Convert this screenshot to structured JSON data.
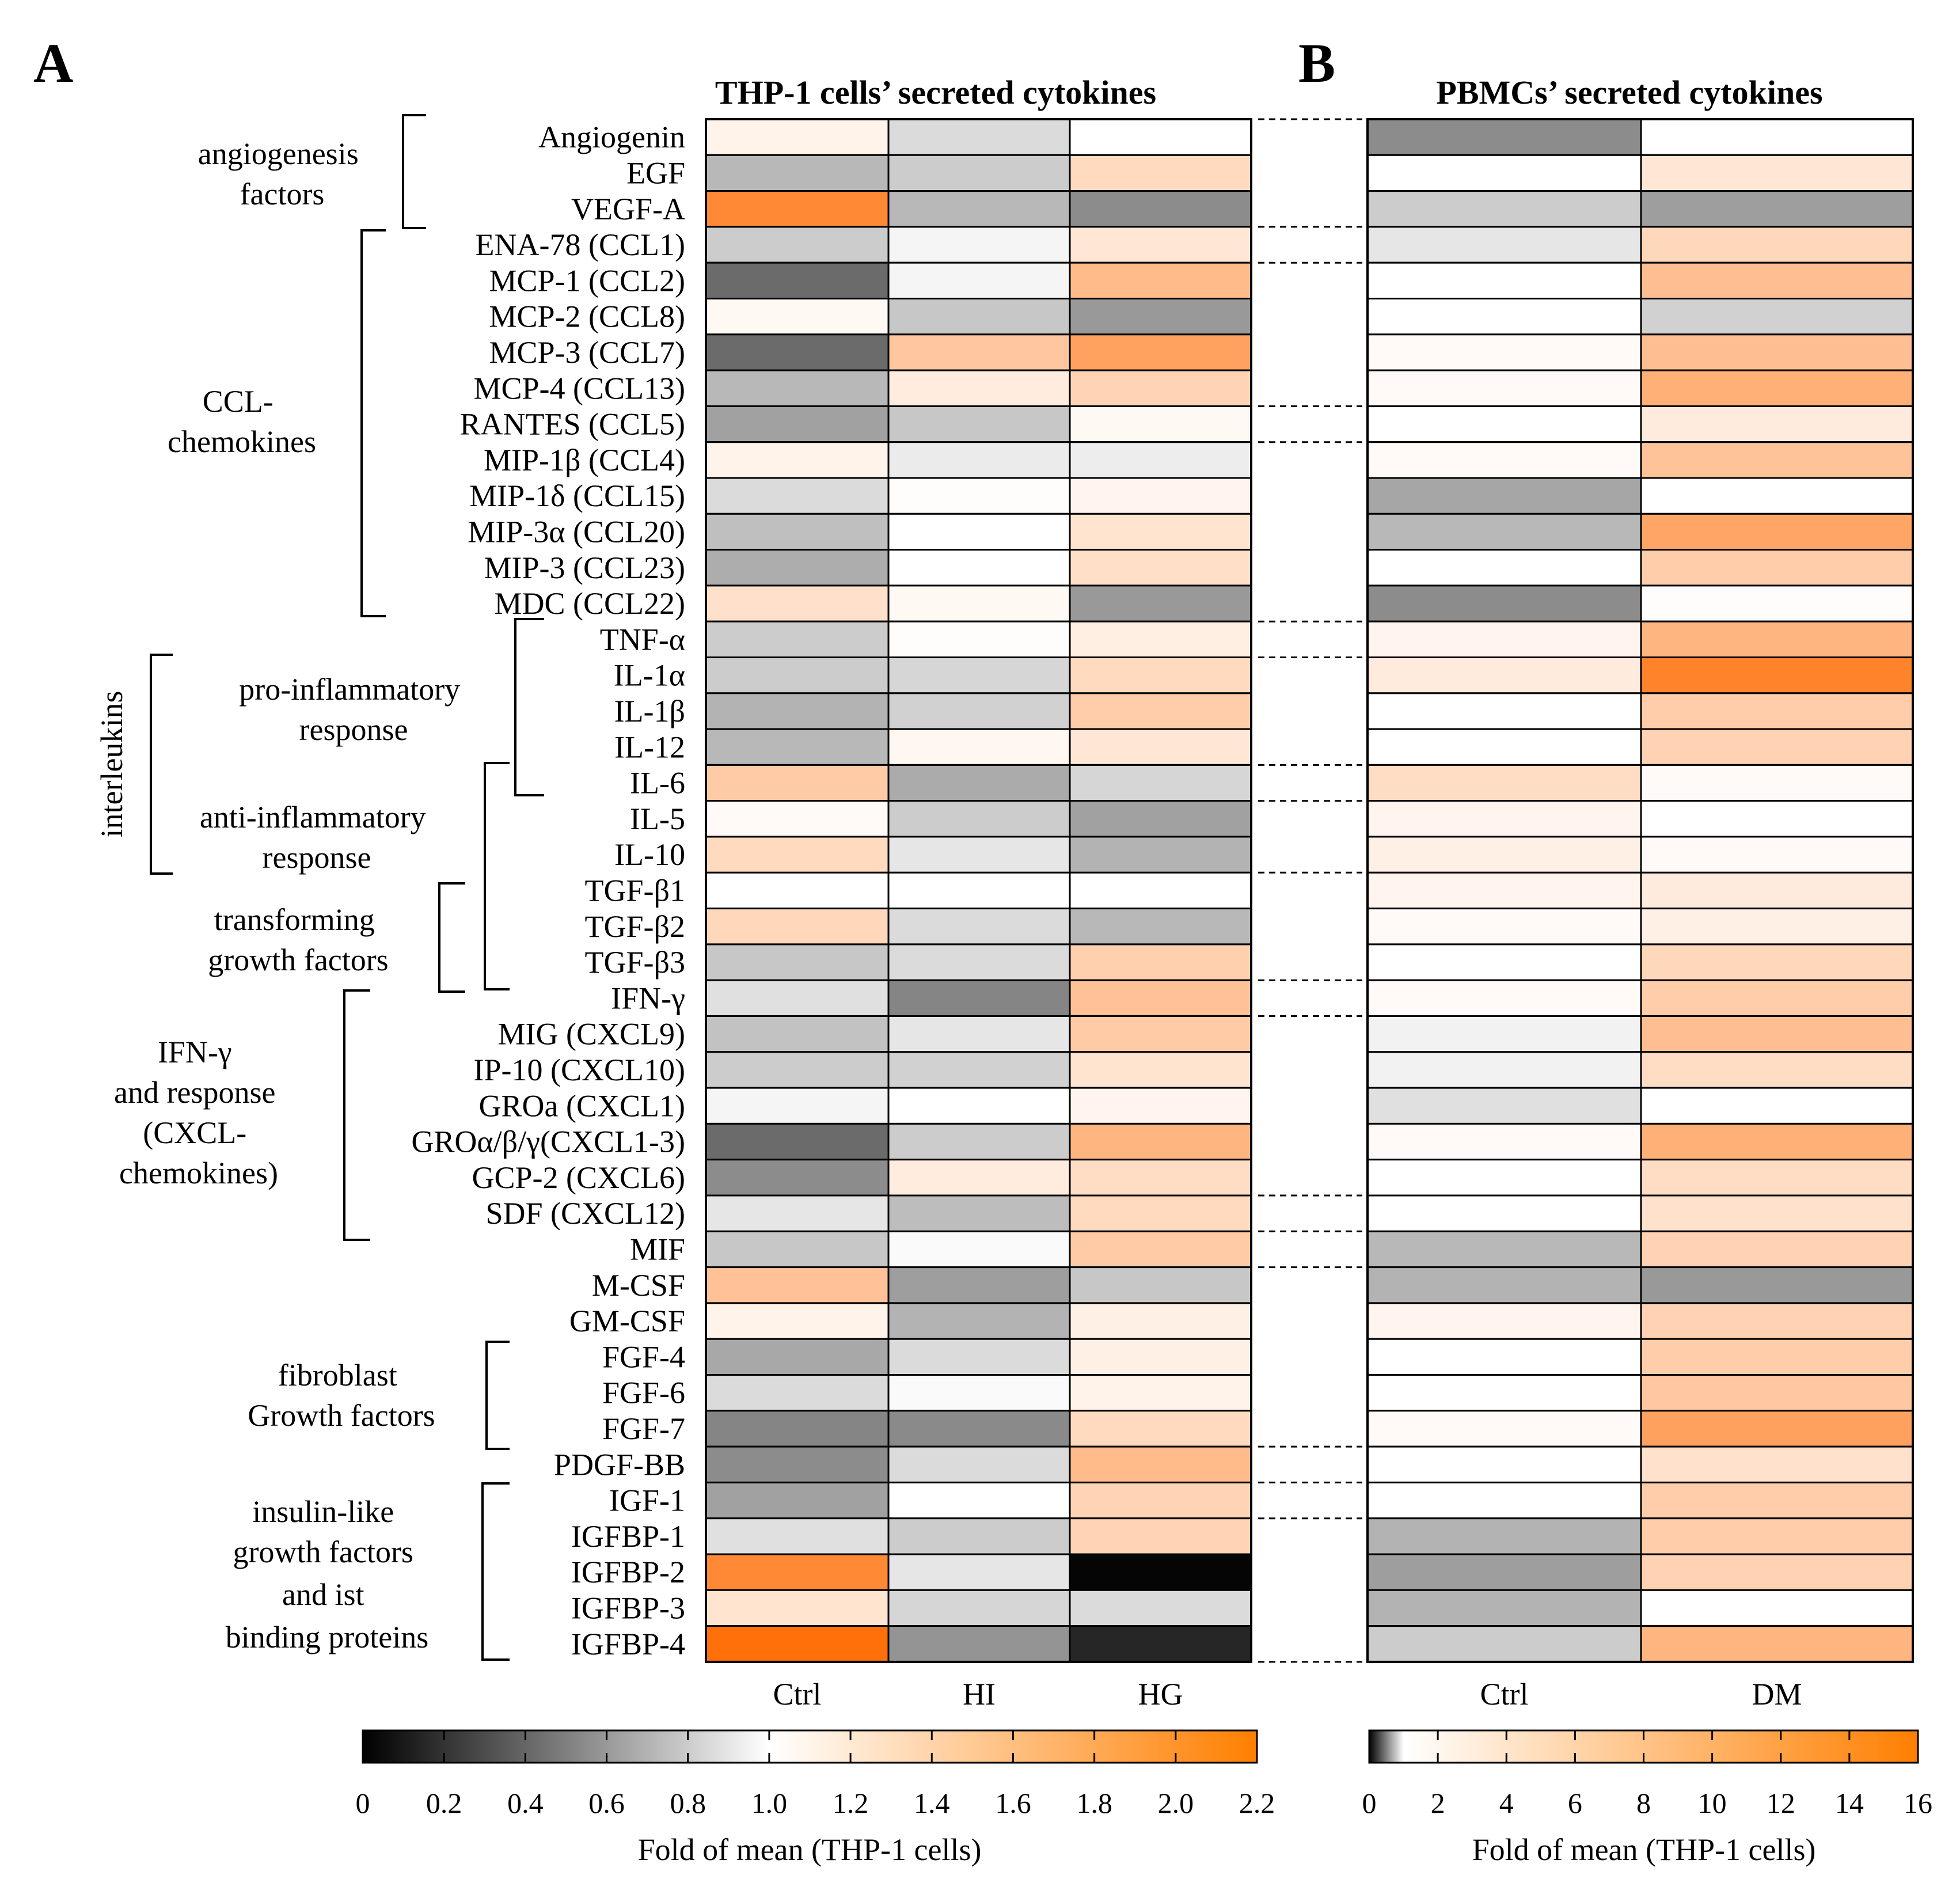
{
  "chart_data": {
    "type": "heatmap",
    "panels": [
      {
        "letter": "A",
        "title": "THP-1 cells’ secreted cytokines",
        "columns": [
          "Ctrl",
          "HI",
          "HG"
        ],
        "colorbar": {
          "min": 0,
          "max": 2.2,
          "center": 1.0,
          "ticks": [
            "0",
            "0.2",
            "0.4",
            "0.6",
            "0.8",
            "1.0",
            "1.2",
            "1.4",
            "1.6",
            "1.8",
            "2.0",
            "2.2"
          ],
          "title": "Fold of mean (THP-1 cells)"
        }
      },
      {
        "letter": "B",
        "title": "PBMCs’ secreted cytokines",
        "columns": [
          "Ctrl",
          "DM"
        ],
        "colorbar": {
          "min": 0,
          "max": 16,
          "center": 1.0,
          "ticks": [
            "0",
            "2",
            "4",
            "6",
            "8",
            "10",
            "12",
            "14",
            "16"
          ],
          "title": "Fold of mean (THP-1 cells)"
        }
      }
    ],
    "rows": [
      "Angiogenin",
      "EGF",
      "VEGF-A",
      "ENA-78 (CCL1)",
      "MCP-1 (CCL2)",
      "MCP-2 (CCL8)",
      "MCP-3 (CCL7)",
      "MCP-4 (CCL13)",
      "RANTES (CCL5)",
      "MIP-1β (CCL4)",
      "MIP-1δ (CCL15)",
      "MIP-3α (CCL20)",
      "MIP-3 (CCL23)",
      "MDC (CCL22)",
      "TNF-α",
      "IL-1α",
      "IL-1β",
      "IL-12",
      "IL-6",
      "IL-5",
      "IL-10",
      "TGF-β1",
      "TGF-β2",
      "TGF-β3",
      "IFN-γ",
      "MIG (CXCL9)",
      "IP-10 (CXCL10)",
      "GROa (CXCL1)",
      "GROα/β/γ(CXCL1-3)",
      "GCP-2 (CXCL6)",
      "SDF (CXCL12)",
      "MIF",
      "M-CSF",
      "GM-CSF",
      "FGF-4",
      "FGF-6",
      "FGF-7",
      "PDGF-BB",
      "IGF-1",
      "IGFBP-1",
      "IGFBP-2",
      "IGFBP-3",
      "IGFBP-4"
    ],
    "values_A": [
      [
        1.1,
        0.86,
        1.0
      ],
      [
        0.72,
        0.8,
        1.3
      ],
      [
        1.95,
        0.72,
        0.55
      ],
      [
        0.8,
        0.96,
        1.2
      ],
      [
        0.42,
        0.96,
        1.55
      ],
      [
        1.05,
        0.78,
        0.6
      ],
      [
        0.42,
        1.45,
        1.75
      ],
      [
        0.72,
        1.15,
        1.35
      ],
      [
        0.63,
        0.78,
        1.05
      ],
      [
        1.1,
        0.92,
        0.93
      ],
      [
        0.86,
        1.02,
        1.08
      ],
      [
        0.75,
        1.0,
        1.22
      ],
      [
        0.68,
        1.0,
        1.26
      ],
      [
        1.25,
        1.05,
        0.6
      ],
      [
        0.8,
        1.02,
        1.14
      ],
      [
        0.8,
        0.84,
        1.3
      ],
      [
        0.7,
        0.82,
        1.4
      ],
      [
        0.72,
        1.06,
        1.2
      ],
      [
        1.42,
        0.67,
        0.84
      ],
      [
        1.04,
        0.8,
        0.63
      ],
      [
        1.3,
        0.9,
        0.7
      ],
      [
        1.0,
        1.0,
        1.0
      ],
      [
        1.32,
        0.86,
        0.72
      ],
      [
        0.78,
        0.86,
        1.38
      ],
      [
        0.88,
        0.52,
        1.5
      ],
      [
        0.76,
        0.9,
        1.42
      ],
      [
        0.8,
        0.82,
        1.22
      ],
      [
        0.96,
        1.0,
        1.08
      ],
      [
        0.42,
        0.8,
        1.6
      ],
      [
        0.55,
        1.15,
        1.28
      ],
      [
        0.9,
        0.74,
        1.3
      ],
      [
        0.78,
        0.98,
        1.42
      ],
      [
        1.5,
        0.62,
        0.78
      ],
      [
        1.1,
        0.7,
        1.12
      ],
      [
        0.66,
        0.86,
        1.12
      ],
      [
        0.86,
        0.98,
        1.1
      ],
      [
        0.52,
        0.54,
        1.3
      ],
      [
        0.55,
        0.86,
        1.55
      ],
      [
        0.63,
        1.0,
        1.35
      ],
      [
        0.88,
        0.8,
        1.35
      ],
      [
        1.95,
        0.9,
        0.02
      ],
      [
        1.22,
        0.84,
        0.86
      ],
      [
        2.15,
        0.58,
        0.15
      ]
    ],
    "values_B": [
      [
        0.55,
        1.0
      ],
      [
        1.0,
        3.5
      ],
      [
        0.8,
        0.62
      ],
      [
        0.9,
        5.0
      ],
      [
        1.0,
        7.5
      ],
      [
        1.0,
        0.82
      ],
      [
        1.5,
        7.5
      ],
      [
        1.5,
        9.0
      ],
      [
        1.0,
        3.0
      ],
      [
        1.5,
        7.0
      ],
      [
        0.65,
        1.0
      ],
      [
        0.72,
        10.0
      ],
      [
        1.0,
        6.0
      ],
      [
        0.55,
        1.2
      ],
      [
        2.0,
        8.5
      ],
      [
        3.0,
        13.5
      ],
      [
        1.0,
        6.0
      ],
      [
        1.0,
        5.5
      ],
      [
        4.5,
        1.5
      ],
      [
        2.0,
        1.0
      ],
      [
        2.5,
        1.5
      ],
      [
        2.0,
        3.0
      ],
      [
        1.5,
        2.5
      ],
      [
        1.0,
        5.0
      ],
      [
        1.5,
        6.0
      ],
      [
        0.95,
        7.5
      ],
      [
        0.95,
        4.5
      ],
      [
        0.88,
        1.0
      ],
      [
        1.5,
        9.0
      ],
      [
        1.0,
        4.5
      ],
      [
        1.0,
        4.0
      ],
      [
        0.72,
        5.5
      ],
      [
        0.7,
        0.6
      ],
      [
        2.0,
        5.5
      ],
      [
        1.0,
        6.0
      ],
      [
        1.0,
        6.5
      ],
      [
        1.5,
        10.5
      ],
      [
        1.0,
        4.0
      ],
      [
        1.0,
        6.0
      ],
      [
        0.7,
        6.0
      ],
      [
        0.62,
        5.5
      ],
      [
        0.7,
        1.0
      ],
      [
        0.8,
        8.5
      ]
    ],
    "groups": [
      {
        "lines": [
          "angiogenesis",
          "factors"
        ]
      },
      {
        "lines": [
          "CCL-",
          "chemokines"
        ]
      },
      {
        "lines": [
          "interleukins"
        ]
      },
      {
        "lines": [
          "pro-inflammatory",
          "response"
        ]
      },
      {
        "lines": [
          "anti-inflammatory",
          "response"
        ]
      },
      {
        "lines": [
          "transforming",
          "growth factors"
        ]
      },
      {
        "lines": [
          "IFN-γ",
          "and response",
          "(CXCL-",
          "chemokines)"
        ]
      },
      {
        "lines": [
          "fibroblast",
          "Growth factors"
        ]
      },
      {
        "lines": [
          "insulin-like",
          "growth factors",
          "and ist",
          "binding proteins"
        ]
      }
    ],
    "colors": {
      "high": "#ff6a00",
      "mid": "#ffffff",
      "low": "#000000",
      "border": "#000000"
    }
  }
}
